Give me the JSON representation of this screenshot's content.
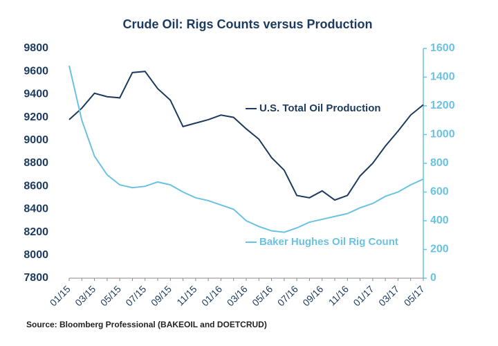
{
  "chart_data": {
    "type": "line",
    "title": "Crude Oil: Rigs Counts versus Production",
    "source": "Source: Bloomberg Professional (BAKEOIL and DOETCRUD)",
    "categories": [
      "01/15",
      null,
      "03/15",
      null,
      "05/15",
      null,
      "07/15",
      null,
      "09/15",
      null,
      "11/15",
      null,
      "01/16",
      null,
      "03/16",
      null,
      "05/16",
      null,
      "07/16",
      null,
      "09/16",
      null,
      "11/16",
      null,
      "01/17",
      null,
      "03/17",
      null,
      "05/17"
    ],
    "series": [
      {
        "name": "U.S. Total Oil Production",
        "color": "#1b3a5e",
        "axis": "y",
        "values": [
          9180,
          9280,
          9410,
          9380,
          9370,
          9590,
          9600,
          9450,
          9350,
          9120,
          9150,
          9180,
          9220,
          9200,
          9100,
          9010,
          8850,
          8740,
          8520,
          8500,
          8560,
          8480,
          8520,
          8690,
          8800,
          8950,
          9080,
          9220,
          9310
        ]
      },
      {
        "name": "Baker Hughes Oil Rig Count",
        "color": "#6ac2e2",
        "axis": "y2",
        "values": [
          1480,
          1100,
          850,
          720,
          650,
          630,
          640,
          670,
          650,
          600,
          560,
          540,
          510,
          480,
          400,
          360,
          330,
          320,
          350,
          390,
          410,
          430,
          450,
          490,
          520,
          570,
          600,
          650,
          690
        ]
      }
    ],
    "ylim": [
      7800,
      9800
    ],
    "yticks": [
      7800,
      8000,
      8200,
      8400,
      8600,
      8800,
      9000,
      9200,
      9400,
      9600,
      9800
    ],
    "y2lim": [
      0,
      1600
    ],
    "y2ticks": [
      0,
      200,
      400,
      600,
      800,
      1000,
      1200,
      1400,
      1600
    ]
  }
}
